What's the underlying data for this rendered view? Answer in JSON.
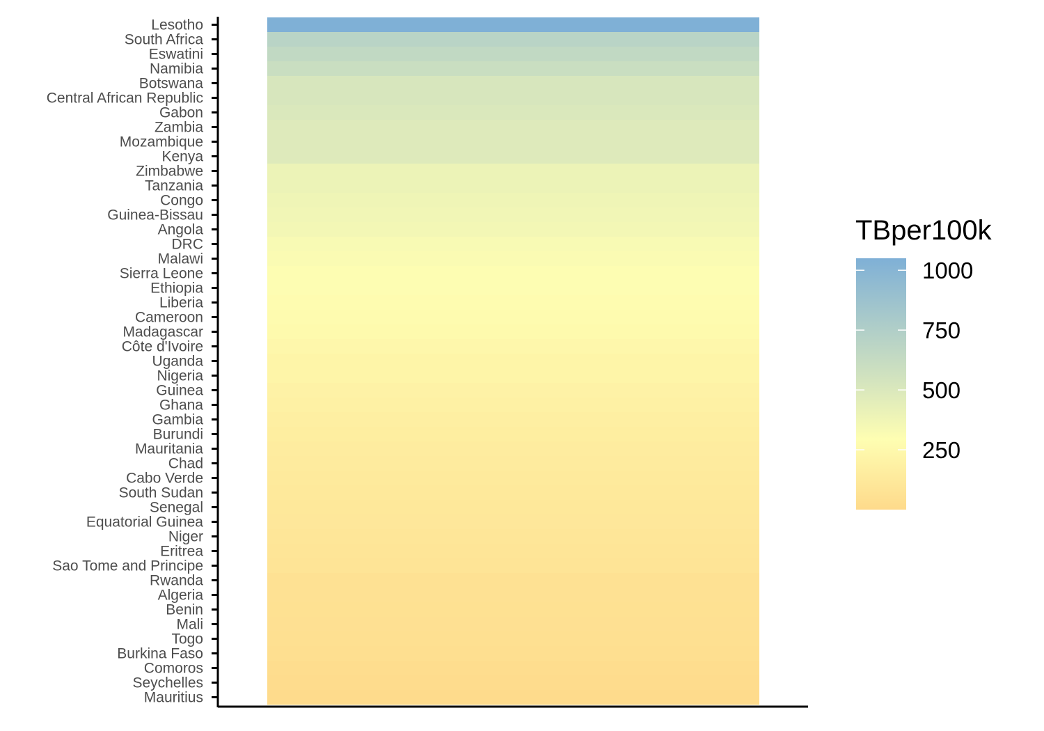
{
  "chart_data": {
    "type": "heatmap",
    "title": "",
    "xlabel": "",
    "ylabel": "",
    "categories": [
      "Lesotho",
      "South Africa",
      "Eswatini",
      "Namibia",
      "Botswana",
      "Central African Republic",
      "Gabon",
      "Zambia",
      "Mozambique",
      "Kenya",
      "Zimbabwe",
      "Tanzania",
      "Congo",
      "Guinea-Bissau",
      "Angola",
      "DRC",
      "Malawi",
      "Sierra Leone",
      "Ethiopia",
      "Liberia",
      "Cameroon",
      "Madagascar",
      "Côte d'Ivoire",
      "Uganda",
      "Nigeria",
      "Guinea",
      "Ghana",
      "Gambia",
      "Burundi",
      "Mauritania",
      "Chad",
      "Cabo Verde",
      "South Sudan",
      "Senegal",
      "Equatorial Guinea",
      "Niger",
      "Eritrea",
      "Sao Tome and Principe",
      "Rwanda",
      "Algeria",
      "Benin",
      "Mali",
      "Togo",
      "Burkina Faso",
      "Comoros",
      "Seychelles",
      "Mauritius"
    ],
    "values": [
      1050,
      700,
      650,
      600,
      520,
      520,
      500,
      480,
      480,
      480,
      400,
      400,
      380,
      370,
      360,
      330,
      320,
      300,
      300,
      280,
      270,
      260,
      240,
      220,
      220,
      200,
      190,
      170,
      160,
      150,
      140,
      130,
      120,
      115,
      110,
      100,
      90,
      85,
      60,
      60,
      55,
      50,
      45,
      40,
      25,
      15,
      10
    ],
    "legend": {
      "title": "TBper100k",
      "position": "right",
      "breaks": [
        250,
        500,
        750,
        1000
      ],
      "range": [
        0,
        1050
      ],
      "colors": [
        "#FEDA8B",
        "#FEFEB2",
        "#CDE0C0",
        "#7FB0D6"
      ],
      "color_positions": [
        0,
        0.28,
        0.55,
        1.0
      ]
    },
    "grid": false
  }
}
